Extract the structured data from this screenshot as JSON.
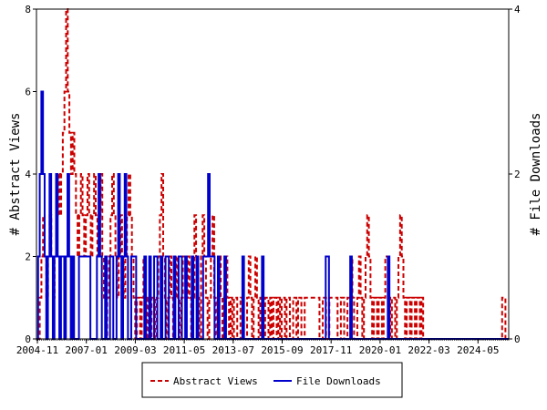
{
  "chart_data": {
    "type": "line",
    "title": "",
    "xlabel": "",
    "ylabel": "# Abstract Views",
    "ylabel_right": "# File Downloads",
    "x_tick_labels": [
      "2004-11",
      "2007-01",
      "2009-03",
      "2011-05",
      "2013-07",
      "2015-09",
      "2017-11",
      "2020-01",
      "2022-03",
      "2024-05"
    ],
    "y_left": {
      "lim": [
        0,
        8
      ],
      "ticks": [
        0,
        2,
        4,
        6,
        8
      ]
    },
    "y_right": {
      "lim": [
        0,
        4
      ],
      "ticks": [
        0,
        2,
        4
      ]
    },
    "grid": false,
    "legend_placement": "bottom-center",
    "series": [
      {
        "name": "Abstract Views",
        "axis": "left",
        "color": "#cc0000",
        "style": "dashed",
        "values": [
          0,
          0,
          1,
          2,
          3,
          2,
          1,
          2,
          3,
          2,
          1,
          2,
          3,
          4,
          3,
          4,
          5,
          6,
          8,
          6,
          5,
          4,
          5,
          4,
          3,
          2,
          3,
          4,
          3,
          2,
          3,
          4,
          3,
          2,
          3,
          4,
          3,
          2,
          3,
          4,
          2,
          1,
          0,
          1,
          2,
          3,
          4,
          3,
          2,
          1,
          2,
          3,
          2,
          1,
          2,
          3,
          4,
          3,
          2,
          1,
          0,
          1,
          1,
          0,
          1,
          2,
          1,
          0,
          1,
          0,
          1,
          1,
          0,
          1,
          2,
          3,
          4,
          2,
          1,
          0,
          1,
          2,
          1,
          0,
          1,
          2,
          1,
          0,
          1,
          2,
          2,
          1,
          2,
          1,
          0,
          1,
          3,
          2,
          1,
          0,
          2,
          3,
          2,
          1,
          0,
          1,
          2,
          3,
          1,
          0,
          1,
          2,
          1,
          0,
          1,
          2,
          1,
          0,
          1,
          0,
          1,
          1,
          0,
          0,
          1,
          1,
          0,
          0,
          1,
          2,
          1,
          0,
          1,
          2,
          1,
          0,
          1,
          1,
          0,
          1,
          1,
          0,
          1,
          0,
          1,
          1,
          0,
          1,
          0,
          1,
          1,
          0,
          1,
          1,
          0,
          0,
          1,
          1,
          0,
          1,
          1,
          0,
          0,
          1,
          1,
          1,
          1,
          1,
          1,
          1,
          1,
          1,
          0,
          0,
          1,
          1,
          0,
          0,
          1,
          1,
          1,
          1,
          1,
          0,
          0,
          1,
          1,
          0,
          0,
          1,
          1,
          2,
          1,
          0,
          0,
          1,
          2,
          1,
          0,
          1,
          2,
          3,
          2,
          1,
          0,
          1,
          1,
          0,
          1,
          1,
          0,
          1,
          2,
          2,
          1,
          0,
          1,
          1,
          0,
          1,
          2,
          3,
          2,
          1,
          0,
          1,
          1,
          0,
          1,
          1,
          0,
          1,
          1,
          0,
          1,
          0,
          0,
          0,
          0,
          0,
          0,
          0,
          0,
          0,
          0,
          0,
          0,
          0,
          0,
          0,
          0,
          0,
          0,
          0,
          0,
          0,
          0,
          0,
          0,
          0,
          0,
          0,
          0,
          0,
          0,
          0,
          0,
          0,
          0,
          0,
          0,
          0,
          0,
          0,
          0,
          0,
          0,
          0,
          0,
          0,
          0,
          0,
          0,
          1,
          1,
          0,
          0,
          0
        ]
      },
      {
        "name": "File Downloads",
        "axis": "right",
        "color": "#0000cc",
        "style": "solid",
        "values": [
          0,
          1,
          2,
          3,
          2,
          1,
          0,
          1,
          2,
          1,
          0,
          1,
          2,
          1,
          0,
          1,
          1,
          0,
          1,
          2,
          1,
          0,
          1,
          0,
          0,
          0,
          1,
          1,
          1,
          1,
          1,
          1,
          1,
          0,
          0,
          0,
          0,
          1,
          2,
          1,
          0,
          0,
          1,
          0,
          0,
          1,
          1,
          0,
          0,
          1,
          2,
          1,
          0,
          1,
          2,
          1,
          0,
          0,
          1,
          1,
          1,
          0,
          0,
          0,
          0,
          0,
          1,
          0,
          0,
          1,
          0,
          0,
          1,
          1,
          0,
          0,
          1,
          0,
          0,
          1,
          1,
          0,
          0,
          0,
          1,
          0,
          0,
          1,
          1,
          0,
          0,
          1,
          0,
          0,
          0,
          1,
          0,
          0,
          1,
          0,
          0,
          0,
          1,
          1,
          1,
          2,
          1,
          1,
          1,
          0,
          0,
          1,
          0,
          0,
          0,
          1,
          0,
          0,
          0,
          0,
          0,
          0,
          0,
          0,
          0,
          0,
          1,
          0,
          0,
          0,
          0,
          0,
          0,
          0,
          0,
          0,
          0,
          0,
          1,
          0,
          0,
          0,
          0,
          0,
          0,
          0,
          0,
          0,
          0,
          0,
          0,
          0,
          0,
          0,
          0,
          0,
          0,
          0,
          0,
          0,
          0,
          0,
          0,
          0,
          0,
          0,
          0,
          0,
          0,
          0,
          0,
          0,
          0,
          0,
          0,
          0,
          0,
          1,
          1,
          0,
          0,
          0,
          0,
          0,
          0,
          0,
          0,
          0,
          0,
          0,
          0,
          0,
          1,
          0,
          0,
          0,
          0,
          0,
          0,
          0,
          0,
          0,
          0,
          0,
          0,
          0,
          0,
          0,
          0,
          0,
          0,
          0,
          0,
          0,
          0,
          1,
          0,
          0,
          0,
          0,
          0,
          0,
          0,
          0,
          0,
          0,
          0,
          0,
          0,
          0,
          0,
          0,
          0,
          0,
          0,
          0,
          0,
          0,
          0,
          0,
          0,
          0,
          0,
          0,
          0,
          0,
          0,
          0,
          0,
          0,
          0,
          0,
          0,
          0,
          0,
          0,
          0,
          0,
          0,
          0,
          0,
          0,
          0,
          0,
          0,
          0,
          0,
          0,
          0,
          0,
          0,
          0,
          0,
          0,
          0,
          0,
          0,
          0,
          0,
          0,
          0,
          0,
          0,
          0,
          0,
          0,
          0,
          0,
          0,
          0
        ]
      }
    ]
  }
}
